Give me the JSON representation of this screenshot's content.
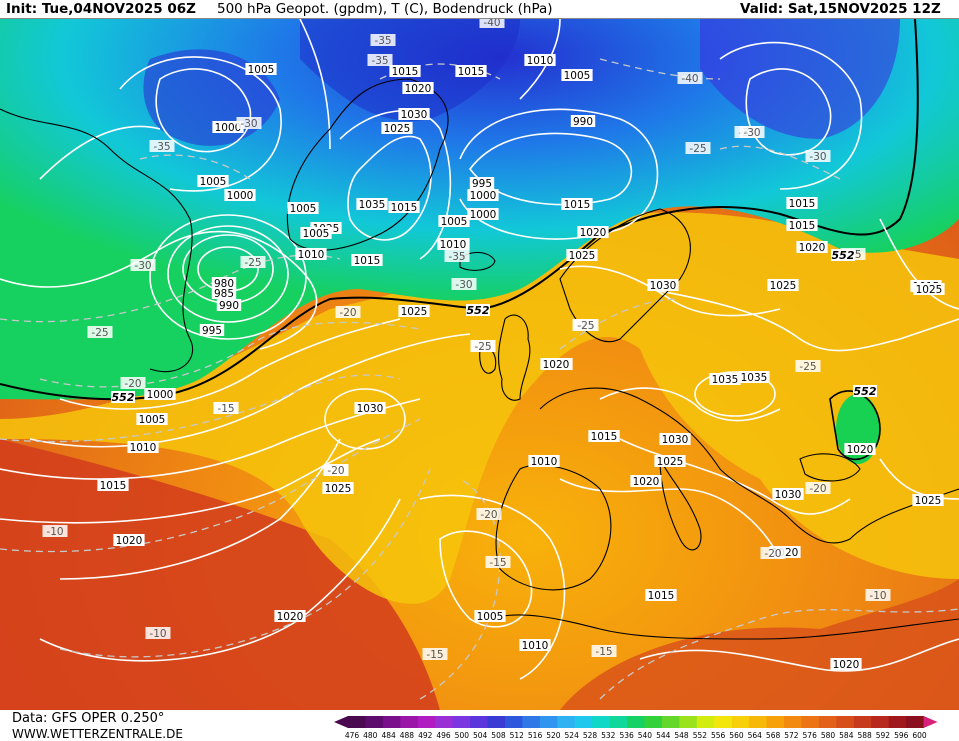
{
  "header": {
    "init": "Init: Tue,04NOV2025 06Z",
    "variable": "500 hPa Geopot. (gpdm), T (C), Bodendruck (hPa)",
    "valid": "Valid: Sat,15NOV2025 12Z"
  },
  "footer": {
    "data_source": "Data: GFS OPER 0.250°",
    "website": "WWW.WETTERZENTRALE.DE"
  },
  "map": {
    "pressure_labels": [
      "1005",
      "1015",
      "1015",
      "1010",
      "1005",
      "1000",
      "1000",
      "1020",
      "1030",
      "1025",
      "990",
      "1000",
      "1005",
      "1000",
      "1005",
      "1035",
      "1015",
      "1005",
      "995",
      "1000",
      "1025",
      "1010",
      "1015",
      "1005",
      "1010",
      "1010",
      "1015",
      "1015",
      "1015",
      "1020",
      "1020",
      "1025",
      "1030",
      "1025",
      "1025",
      "980",
      "985",
      "990",
      "995",
      "1000",
      "1020",
      "1000",
      "1005",
      "1010",
      "1015",
      "1020",
      "1030",
      "1025",
      "1020",
      "1035",
      "1035",
      "1030",
      "1025",
      "1020",
      "1015",
      "1010",
      "1030",
      "1020",
      "1015",
      "1025",
      "1015",
      "1020",
      "1005",
      "1010",
      "1020",
      "1020",
      "1015",
      "1025"
    ],
    "temperature_labels": [
      "-35",
      "-40",
      "-35",
      "-40",
      "-35",
      "-30",
      "-35",
      "-30",
      "-25",
      "-25",
      "-30",
      "-35",
      "-30",
      "-30",
      "-25",
      "-20",
      "-30",
      "-25",
      "-25",
      "-25",
      "-20",
      "-20",
      "-15",
      "-20",
      "-25",
      "-25",
      "-20",
      "-20",
      "-15",
      "-10",
      "-10",
      "-15",
      "-15",
      "-15",
      "-10",
      "-20"
    ],
    "geopotential_labels": [
      "552",
      "552",
      "552",
      "552"
    ]
  },
  "colorbar": {
    "ticks": [
      "476",
      "480",
      "484",
      "488",
      "492",
      "496",
      "500",
      "504",
      "508",
      "512",
      "516",
      "520",
      "524",
      "528",
      "532",
      "536",
      "540",
      "544",
      "548",
      "552",
      "556",
      "560",
      "564",
      "568",
      "572",
      "576",
      "580",
      "584",
      "588",
      "592",
      "596",
      "600"
    ],
    "colors": [
      "#4b0a4f",
      "#5e0b6e",
      "#7a0f8c",
      "#9a15a8",
      "#b01cc2",
      "#9b2fd6",
      "#7a36e0",
      "#5a36dc",
      "#3a3ad4",
      "#2f57dc",
      "#2f78e6",
      "#2f95ee",
      "#2fb2f2",
      "#21c8ee",
      "#10d8c8",
      "#10d89a",
      "#16d264",
      "#34d23a",
      "#64d82a",
      "#9ae21c",
      "#d2ec10",
      "#f2e60c",
      "#f8d00a",
      "#f8b80a",
      "#f6a00a",
      "#f28a10",
      "#ec7414",
      "#e26018",
      "#d84e1a",
      "#c83a1c",
      "#b8281c",
      "#a0181c",
      "#8a1020",
      "#d8207a"
    ]
  },
  "colors": {
    "contour": "#ffffff",
    "isotherm": "#c8c8c8",
    "coast": "#000000",
    "line552": "#000000"
  }
}
